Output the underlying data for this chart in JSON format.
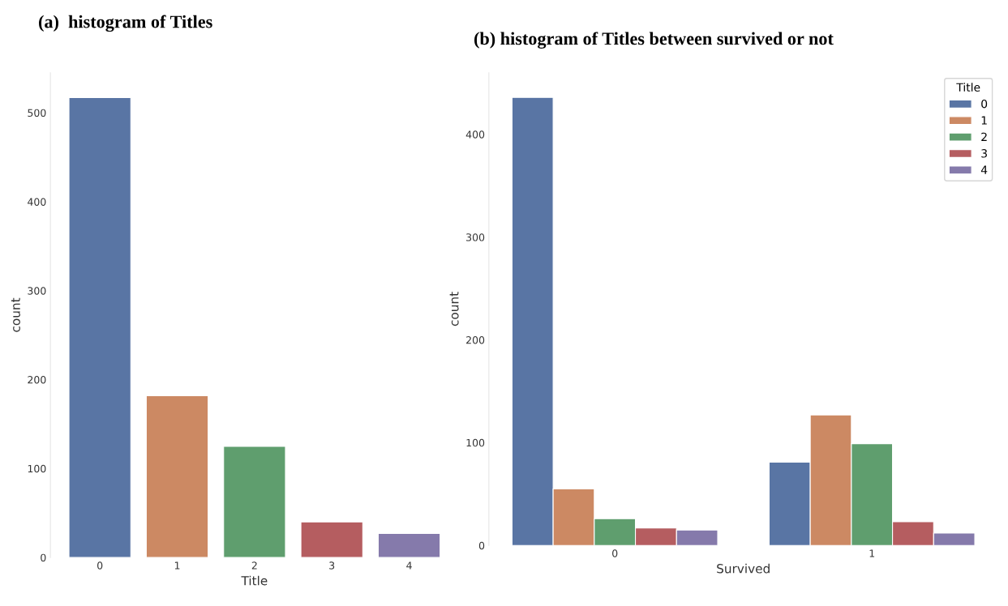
{
  "chart_data": [
    {
      "type": "bar",
      "title": "(a)  histogram of Titles",
      "xlabel": "Title",
      "ylabel": "count",
      "categories": [
        "0",
        "1",
        "2",
        "3",
        "4"
      ],
      "values": [
        517,
        182,
        125,
        40,
        27
      ],
      "colors": [
        "#5975a4",
        "#cc8963",
        "#5f9e6e",
        "#b55d60",
        "#857aab"
      ],
      "ylim": [
        0,
        545
      ],
      "yticks": [
        0,
        100,
        200,
        300,
        400,
        500
      ],
      "grid": false,
      "legend": false
    },
    {
      "type": "bar",
      "title": "(b) histogram of Titles between survived or not",
      "xlabel": "Survived",
      "ylabel": "count",
      "legend_title": "Title",
      "categories": [
        "0",
        "1"
      ],
      "series": [
        {
          "name": "0",
          "color": "#5975a4",
          "values": [
            436,
            81
          ]
        },
        {
          "name": "1",
          "color": "#cc8963",
          "values": [
            55,
            127
          ]
        },
        {
          "name": "2",
          "color": "#5f9e6e",
          "values": [
            26,
            99
          ]
        },
        {
          "name": "3",
          "color": "#b55d60",
          "values": [
            17,
            23
          ]
        },
        {
          "name": "4",
          "color": "#857aab",
          "values": [
            15,
            12
          ]
        }
      ],
      "ylim": [
        0,
        460
      ],
      "yticks": [
        0,
        100,
        200,
        300,
        400
      ],
      "grid": false,
      "legend": "top right"
    }
  ]
}
